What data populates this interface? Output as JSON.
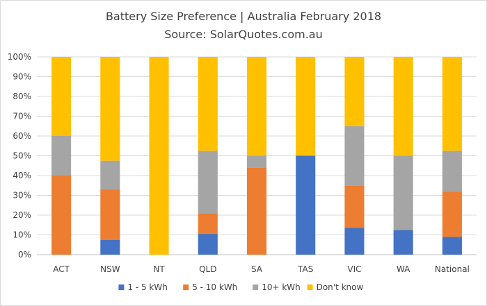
{
  "chart_data": {
    "type": "bar",
    "stacked": true,
    "title": "Battery Size Preference  | Australia February 2018",
    "subtitle": "Source: SolarQuotes.com.au",
    "xlabel": "",
    "ylabel": "",
    "ylim": [
      0,
      100
    ],
    "y_ticks": [
      "0%",
      "10%",
      "20%",
      "30%",
      "40%",
      "50%",
      "60%",
      "70%",
      "80%",
      "90%",
      "100%"
    ],
    "grid": true,
    "legend_position": "bottom",
    "categories": [
      "ACT",
      "NSW",
      "NT",
      "QLD",
      "SA",
      "TAS",
      "VIC",
      "WA",
      "National"
    ],
    "series": [
      {
        "name": "1 - 5 kWh",
        "color": "#4472c4",
        "values": [
          0,
          7.5,
          0,
          10.5,
          0,
          50,
          13.5,
          12.5,
          9
        ]
      },
      {
        "name": "5 - 10 kWh",
        "color": "#ed7d31",
        "values": [
          40,
          25.5,
          0,
          10.5,
          44,
          0,
          21.5,
          0,
          23
        ]
      },
      {
        "name": "10+ kWh",
        "color": "#a5a5a5",
        "values": [
          20,
          14.5,
          0,
          31.5,
          6,
          0,
          30,
          37.5,
          20.5
        ]
      },
      {
        "name": "Don't know",
        "color": "#ffc000",
        "values": [
          40,
          52.5,
          100,
          47.5,
          50,
          50,
          35,
          50,
          47.5
        ]
      }
    ]
  }
}
